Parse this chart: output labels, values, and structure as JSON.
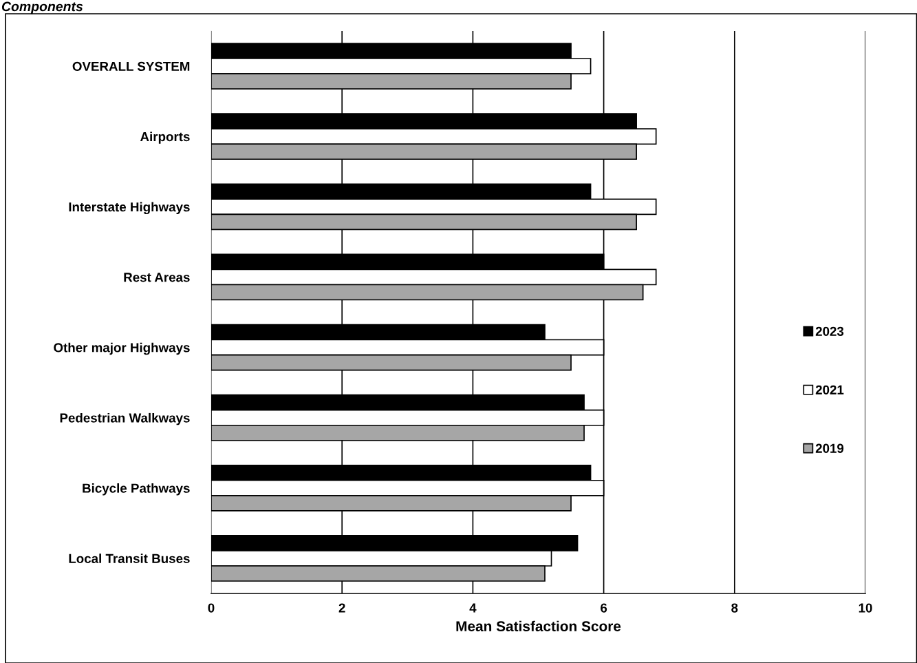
{
  "chart_data": {
    "type": "bar",
    "orientation": "horizontal",
    "title": "Components",
    "xlabel": "Mean Satisfaction Score",
    "categories": [
      "OVERALL SYSTEM",
      "Airports",
      "Interstate Highways",
      "Rest Areas",
      "Other major Highways",
      "Pedestrian Walkways",
      "Bicycle Pathways",
      "Local Transit Buses"
    ],
    "series": [
      {
        "name": "2023",
        "color": "#000000",
        "values": [
          5.5,
          6.5,
          5.8,
          6.0,
          5.1,
          5.7,
          5.8,
          5.6
        ]
      },
      {
        "name": "2021",
        "color": "#ffffff",
        "values": [
          5.8,
          6.8,
          6.8,
          6.8,
          6.0,
          6.0,
          6.0,
          5.2
        ]
      },
      {
        "name": "2019",
        "color": "#a6a6a6",
        "values": [
          5.5,
          6.5,
          6.5,
          6.6,
          5.5,
          5.7,
          5.5,
          5.1
        ]
      }
    ],
    "xlim": [
      0,
      10
    ],
    "xticks": [
      0,
      2,
      4,
      6,
      8,
      10
    ],
    "grid": "x",
    "legend": "right"
  }
}
